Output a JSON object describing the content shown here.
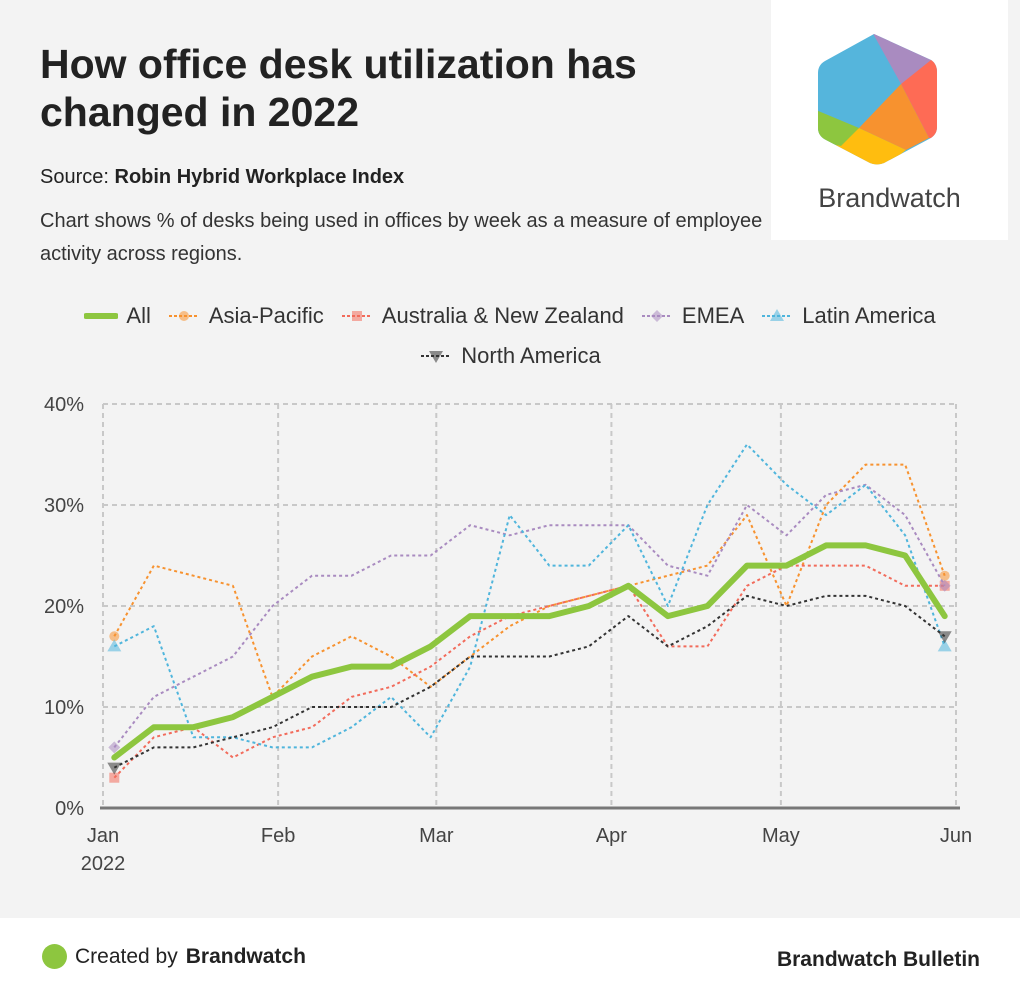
{
  "header": {
    "title": "How office desk utilization has changed in 2022",
    "source_label": "Source:",
    "source_name": "Robin Hybrid Workplace Index",
    "description": "Chart shows % of desks being used in offices by week as a measure of employee activity across regions."
  },
  "logo": {
    "text": "Brandwatch"
  },
  "footer": {
    "created_prefix": "Created by",
    "created_brand": "Brandwatch",
    "right_text": "Brandwatch Bulletin"
  },
  "chart_data": {
    "type": "line",
    "title": "How office desk utilization has changed in 2022",
    "xlabel": "",
    "ylabel": "",
    "ylim": [
      0,
      40
    ],
    "yticks": [
      0,
      10,
      20,
      30,
      40
    ],
    "ytick_labels": [
      "0%",
      "10%",
      "20%",
      "30%",
      "40%"
    ],
    "xticks": [
      {
        "date": "2022-01-01",
        "label": "Jan",
        "sub": "2022"
      },
      {
        "date": "2022-02-01",
        "label": "Feb"
      },
      {
        "date": "2022-03-01",
        "label": "Mar"
      },
      {
        "date": "2022-04-01",
        "label": "Apr"
      },
      {
        "date": "2022-05-01",
        "label": "May"
      },
      {
        "date": "2022-06-01",
        "label": "Jun"
      }
    ],
    "xlim": [
      "2022-01-01",
      "2022-06-01"
    ],
    "grid": true,
    "legend_placement": "top",
    "x": [
      "2022-01-03",
      "2022-01-10",
      "2022-01-17",
      "2022-01-24",
      "2022-01-31",
      "2022-02-07",
      "2022-02-14",
      "2022-02-21",
      "2022-02-28",
      "2022-03-07",
      "2022-03-14",
      "2022-03-21",
      "2022-03-28",
      "2022-04-04",
      "2022-04-11",
      "2022-04-18",
      "2022-04-25",
      "2022-05-02",
      "2022-05-09",
      "2022-05-16",
      "2022-05-23",
      "2022-05-30"
    ],
    "series": [
      {
        "name": "All",
        "color": "#8dc63f",
        "style": "solid",
        "marker": "none",
        "values": [
          5,
          8,
          8,
          9,
          11,
          13,
          14,
          14,
          16,
          19,
          19,
          19,
          20,
          22,
          19,
          20,
          24,
          24,
          26,
          26,
          25,
          19
        ]
      },
      {
        "name": "Asia-Pacific",
        "color": "#f7922f",
        "style": "dotted",
        "marker": "circle",
        "values": [
          17,
          24,
          23,
          22,
          11,
          15,
          17,
          15,
          12,
          15,
          18,
          20,
          21,
          22,
          23,
          24,
          29,
          20,
          30,
          34,
          34,
          23
        ]
      },
      {
        "name": "Australia & New Zealand",
        "color": "#f26b5b",
        "style": "dotted",
        "marker": "square",
        "values": [
          3,
          7,
          8,
          5,
          7,
          8,
          11,
          12,
          14,
          17,
          19,
          20,
          21,
          22,
          16,
          16,
          22,
          24,
          24,
          24,
          22,
          22
        ]
      },
      {
        "name": "EMEA",
        "color": "#a98bc0",
        "style": "dotted",
        "marker": "diamond",
        "values": [
          6,
          11,
          13,
          15,
          20,
          23,
          23,
          25,
          25,
          28,
          27,
          28,
          28,
          28,
          24,
          23,
          30,
          27,
          31,
          32,
          29,
          22
        ]
      },
      {
        "name": "Latin America",
        "color": "#4fb5dc",
        "style": "dotted",
        "marker": "triangle-up",
        "values": [
          16,
          18,
          7,
          7,
          6,
          6,
          8,
          11,
          7,
          14,
          29,
          24,
          24,
          28,
          20,
          30,
          36,
          32,
          29,
          32,
          27,
          16
        ]
      },
      {
        "name": "North America",
        "color": "#333333",
        "style": "dotted",
        "marker": "triangle-down",
        "values": [
          4,
          6,
          6,
          7,
          8,
          10,
          10,
          10,
          12,
          15,
          15,
          15,
          16,
          19,
          16,
          18,
          21,
          20,
          21,
          21,
          20,
          17
        ]
      }
    ]
  }
}
